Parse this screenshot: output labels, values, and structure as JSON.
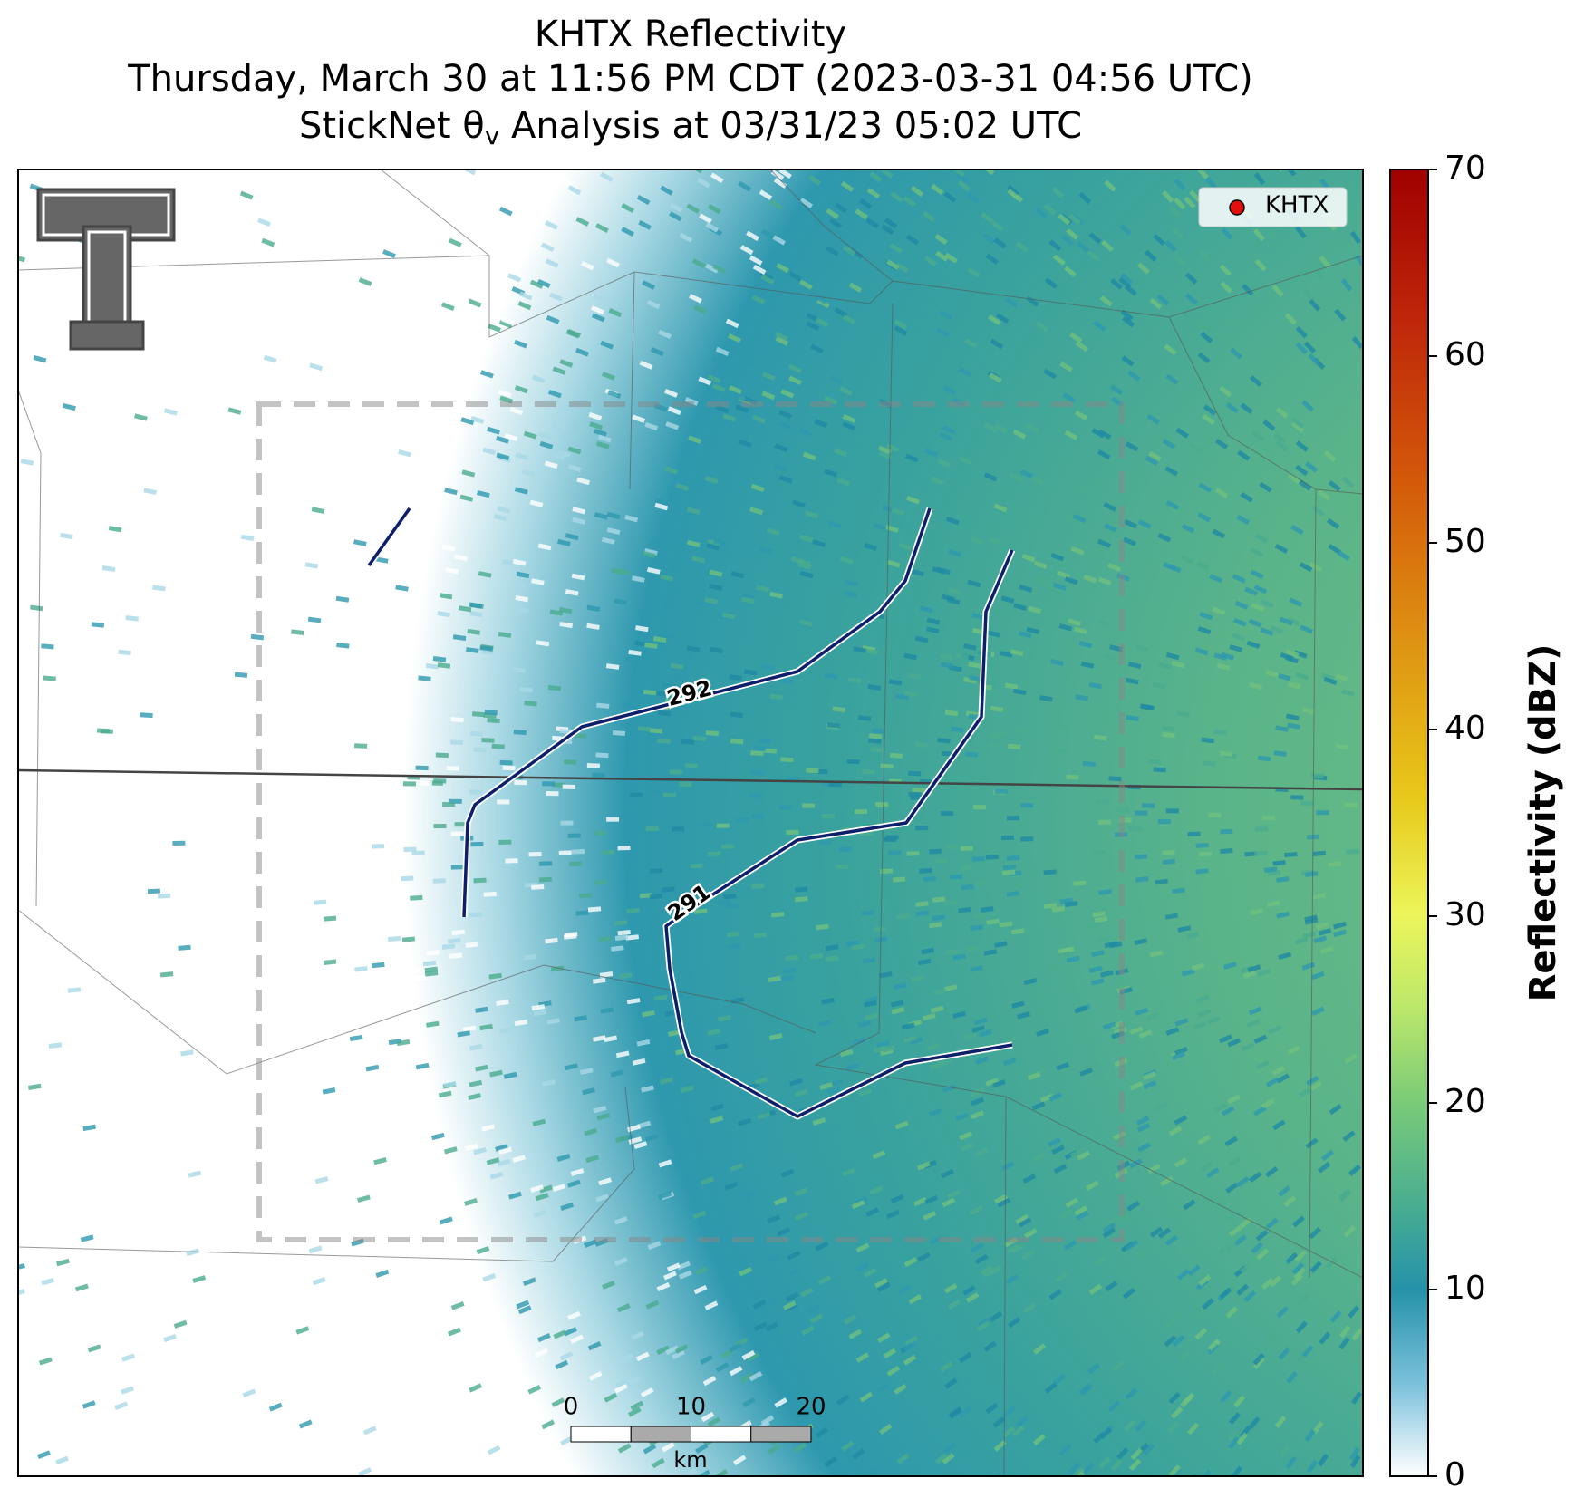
{
  "title": [
    "KHTX Reflectivity",
    "Thursday, March 30 at 11:56 PM CDT (2023-03-31 04:56 UTC)",
    "StickNet θ",
    "v",
    " Analysis at 03/31/23 05:02 UTC"
  ],
  "legend": {
    "label": "KHTX"
  },
  "colorbar": {
    "label": "Reflectivity (dBZ)",
    "lim": [
      0,
      70
    ],
    "ticks": [
      0,
      10,
      20,
      30,
      40,
      50,
      60,
      70
    ]
  },
  "contours": [
    {
      "label": "292"
    },
    {
      "label": "291"
    }
  ],
  "scale_bar": {
    "ticks": [
      0,
      10,
      20
    ],
    "unit": "km"
  }
}
